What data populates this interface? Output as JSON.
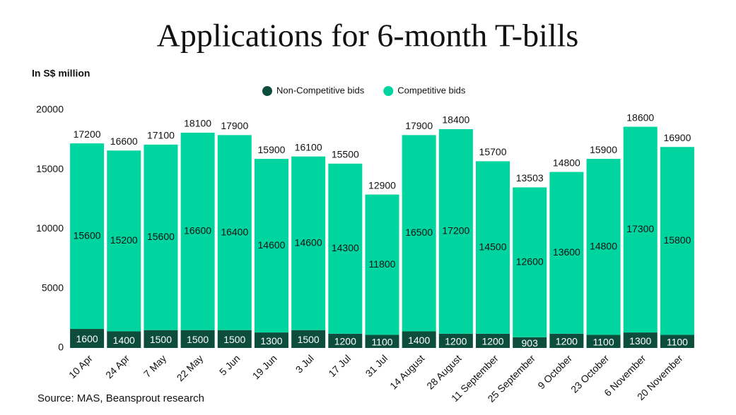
{
  "chart_data": {
    "type": "stacked-bar",
    "title": "Applications for 6-month T-bills",
    "y_label": "In S$ million",
    "source": "Source: MAS, Beansprout research",
    "categories": [
      "10 Apr",
      "24 Apr",
      "7 May",
      "22 May",
      "5 Jun",
      "19 Jun",
      "3 Jul",
      "17 Jul",
      "31 Jul",
      "14 August",
      "28 August",
      "11 September",
      "25 September",
      "9 October",
      "23 October",
      "6 November",
      "20 November"
    ],
    "series": [
      {
        "name": "Non-Competitive bids",
        "color": "#0d4d3c",
        "values": [
          1600,
          1400,
          1500,
          1500,
          1500,
          1300,
          1500,
          1200,
          1100,
          1400,
          1200,
          1200,
          903,
          1200,
          1100,
          1300,
          1100
        ]
      },
      {
        "name": "Competitive bids",
        "color": "#00d5a0",
        "values": [
          15600,
          15200,
          15600,
          16600,
          16400,
          14600,
          14600,
          14300,
          11800,
          16500,
          17200,
          14500,
          12600,
          13600,
          14800,
          17300,
          15800
        ]
      }
    ],
    "totals": [
      17200,
      16600,
      17100,
      18100,
      17900,
      15900,
      16100,
      15500,
      12900,
      17900,
      18400,
      15700,
      13503,
      14800,
      15900,
      18600,
      16900
    ],
    "ylim": [
      0,
      20000
    ],
    "yticks": [
      0,
      5000,
      10000,
      15000,
      20000
    ],
    "grid": false
  }
}
